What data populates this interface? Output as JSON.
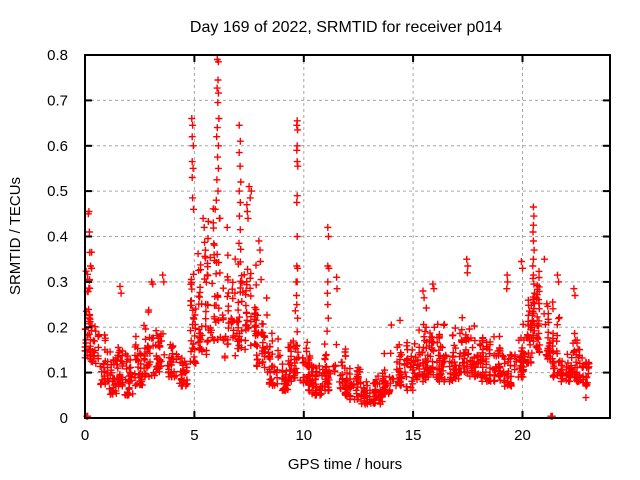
{
  "chart_data": {
    "type": "scatter",
    "title": "Day 169 of 2022, SRMTID for receiver p014",
    "xlabel": "GPS time / hours",
    "ylabel": "SRMTID / TECUs",
    "xlim": [
      0,
      24
    ],
    "ylim": [
      0,
      0.8
    ],
    "xticks": [
      0,
      5,
      10,
      15,
      20
    ],
    "yticks": [
      0,
      0.1,
      0.2,
      0.3,
      0.4,
      0.5,
      0.6,
      0.7,
      0.8
    ],
    "grid": {
      "shown": true,
      "color": "#a6a6a6",
      "dash": "3,3"
    },
    "frame_color": "#000000",
    "marker": {
      "shape": "plus",
      "color": "#ff0000",
      "size": 7
    },
    "legend": {
      "shown": false
    },
    "data_representation": "Dense noisy scatter (~2000 pts). band_segments = [t_start,t_end,y_min,y_max,count] summarize the noise band read from the plot; peak_points are the individually readable outlier/spike points in TECUs.",
    "seed": 169,
    "band_segments": [
      [
        0.0,
        0.25,
        0.13,
        0.31,
        26
      ],
      [
        0.05,
        0.35,
        0.27,
        0.42,
        9
      ],
      [
        0.25,
        0.65,
        0.12,
        0.27,
        30
      ],
      [
        0.65,
        1.05,
        0.07,
        0.19,
        28
      ],
      [
        1.05,
        1.45,
        0.05,
        0.16,
        28
      ],
      [
        1.45,
        1.85,
        0.07,
        0.22,
        32
      ],
      [
        1.85,
        2.25,
        0.05,
        0.15,
        28
      ],
      [
        2.25,
        2.7,
        0.07,
        0.2,
        30
      ],
      [
        2.7,
        3.25,
        0.09,
        0.26,
        34
      ],
      [
        3.25,
        3.75,
        0.1,
        0.28,
        34
      ],
      [
        3.75,
        4.25,
        0.09,
        0.22,
        32
      ],
      [
        4.25,
        4.7,
        0.07,
        0.18,
        28
      ],
      [
        4.7,
        5.1,
        0.12,
        0.38,
        32
      ],
      [
        5.1,
        5.6,
        0.14,
        0.4,
        38
      ],
      [
        5.6,
        6.3,
        0.17,
        0.5,
        48
      ],
      [
        6.3,
        6.85,
        0.13,
        0.38,
        36
      ],
      [
        6.85,
        7.35,
        0.15,
        0.4,
        36
      ],
      [
        7.35,
        7.85,
        0.16,
        0.42,
        38
      ],
      [
        7.85,
        8.35,
        0.1,
        0.3,
        34
      ],
      [
        8.35,
        8.85,
        0.07,
        0.2,
        32
      ],
      [
        8.85,
        9.35,
        0.06,
        0.16,
        32
      ],
      [
        9.35,
        9.8,
        0.08,
        0.28,
        28
      ],
      [
        9.8,
        10.3,
        0.06,
        0.18,
        34
      ],
      [
        10.3,
        10.85,
        0.05,
        0.15,
        34
      ],
      [
        10.85,
        11.5,
        0.06,
        0.22,
        40
      ],
      [
        11.5,
        12.1,
        0.05,
        0.16,
        38
      ],
      [
        12.1,
        12.6,
        0.04,
        0.13,
        34
      ],
      [
        12.6,
        13.1,
        0.03,
        0.11,
        34
      ],
      [
        13.1,
        13.6,
        0.03,
        0.12,
        34
      ],
      [
        13.6,
        14.1,
        0.05,
        0.16,
        34
      ],
      [
        14.1,
        14.6,
        0.07,
        0.2,
        34
      ],
      [
        14.6,
        15.1,
        0.06,
        0.19,
        34
      ],
      [
        15.1,
        15.6,
        0.08,
        0.24,
        36
      ],
      [
        15.6,
        16.1,
        0.09,
        0.26,
        38
      ],
      [
        16.1,
        16.6,
        0.08,
        0.23,
        34
      ],
      [
        16.6,
        17.1,
        0.08,
        0.22,
        34
      ],
      [
        17.1,
        17.6,
        0.1,
        0.26,
        36
      ],
      [
        17.6,
        18.1,
        0.09,
        0.22,
        34
      ],
      [
        18.1,
        18.6,
        0.08,
        0.22,
        34
      ],
      [
        18.6,
        19.1,
        0.08,
        0.2,
        34
      ],
      [
        19.1,
        19.6,
        0.07,
        0.18,
        34
      ],
      [
        19.6,
        20.1,
        0.09,
        0.24,
        36
      ],
      [
        20.1,
        20.45,
        0.12,
        0.32,
        30
      ],
      [
        20.45,
        20.75,
        0.15,
        0.38,
        28
      ],
      [
        20.75,
        21.25,
        0.13,
        0.33,
        38
      ],
      [
        21.25,
        21.75,
        0.09,
        0.26,
        32
      ],
      [
        21.75,
        22.25,
        0.08,
        0.2,
        32
      ],
      [
        22.25,
        22.75,
        0.08,
        0.24,
        36
      ],
      [
        22.75,
        23.05,
        0.07,
        0.17,
        26
      ]
    ],
    "peak_points": [
      [
        0.08,
        0.004
      ],
      [
        0.12,
        0.004
      ],
      [
        0.15,
        0.45
      ],
      [
        0.18,
        0.455
      ],
      [
        0.2,
        0.41
      ],
      [
        0.22,
        0.365
      ],
      [
        0.25,
        0.335
      ],
      [
        0.3,
        0.33
      ],
      [
        1.6,
        0.29
      ],
      [
        1.65,
        0.275
      ],
      [
        3.05,
        0.3
      ],
      [
        3.1,
        0.295
      ],
      [
        3.55,
        0.315
      ],
      [
        3.6,
        0.3
      ],
      [
        4.88,
        0.66
      ],
      [
        4.92,
        0.645
      ],
      [
        4.9,
        0.62
      ],
      [
        4.95,
        0.6
      ],
      [
        4.9,
        0.565
      ],
      [
        4.94,
        0.55
      ],
      [
        4.9,
        0.53
      ],
      [
        4.92,
        0.485
      ],
      [
        4.96,
        0.46
      ],
      [
        5.4,
        0.44
      ],
      [
        5.45,
        0.42
      ],
      [
        5.95,
        0.46
      ],
      [
        6.0,
        0.48
      ],
      [
        6.03,
        0.525
      ],
      [
        6.05,
        0.79
      ],
      [
        6.05,
        0.64
      ],
      [
        6.02,
        0.62
      ],
      [
        6.04,
        0.727
      ],
      [
        6.06,
        0.575
      ],
      [
        6.07,
        0.695
      ],
      [
        6.08,
        0.745
      ],
      [
        6.08,
        0.5
      ],
      [
        6.1,
        0.785
      ],
      [
        6.1,
        0.716
      ],
      [
        6.1,
        0.6
      ],
      [
        6.1,
        0.55
      ],
      [
        6.12,
        0.66
      ],
      [
        6.15,
        0.44
      ],
      [
        6.5,
        0.42
      ],
      [
        7.04,
        0.385
      ],
      [
        7.05,
        0.645
      ],
      [
        7.05,
        0.585
      ],
      [
        7.05,
        0.5
      ],
      [
        7.06,
        0.445
      ],
      [
        7.09,
        0.555
      ],
      [
        7.1,
        0.61
      ],
      [
        7.1,
        0.475
      ],
      [
        7.1,
        0.415
      ],
      [
        7.12,
        0.52
      ],
      [
        7.4,
        0.47
      ],
      [
        7.42,
        0.455
      ],
      [
        7.45,
        0.44
      ],
      [
        7.5,
        0.51
      ],
      [
        7.55,
        0.485
      ],
      [
        7.6,
        0.5
      ],
      [
        7.95,
        0.39
      ],
      [
        8.0,
        0.37
      ],
      [
        8.02,
        0.345
      ],
      [
        8.05,
        0.305
      ],
      [
        9.65,
        0.3
      ],
      [
        9.67,
        0.27
      ],
      [
        9.68,
        0.645
      ],
      [
        9.68,
        0.59
      ],
      [
        9.68,
        0.475
      ],
      [
        9.68,
        0.335
      ],
      [
        9.68,
        0.25
      ],
      [
        9.68,
        0.13
      ],
      [
        9.7,
        0.655
      ],
      [
        9.7,
        0.6
      ],
      [
        9.7,
        0.565
      ],
      [
        9.7,
        0.49
      ],
      [
        9.7,
        0.4
      ],
      [
        9.7,
        0.3
      ],
      [
        9.7,
        0.19
      ],
      [
        9.7,
        0.16
      ],
      [
        9.7,
        0.1
      ],
      [
        9.72,
        0.635
      ],
      [
        9.72,
        0.33
      ],
      [
        9.72,
        0.22
      ],
      [
        9.73,
        0.555
      ],
      [
        11.08,
        0.275
      ],
      [
        11.1,
        0.42
      ],
      [
        11.1,
        0.335
      ],
      [
        11.1,
        0.3
      ],
      [
        11.1,
        0.25
      ],
      [
        11.12,
        0.22
      ],
      [
        11.13,
        0.4
      ],
      [
        11.15,
        0.33
      ],
      [
        11.5,
        0.31
      ],
      [
        11.52,
        0.285
      ],
      [
        14.0,
        0.205
      ],
      [
        14.4,
        0.215
      ],
      [
        15.45,
        0.28
      ],
      [
        15.5,
        0.265
      ],
      [
        15.9,
        0.295
      ],
      [
        15.95,
        0.285
      ],
      [
        17.45,
        0.35
      ],
      [
        17.5,
        0.335
      ],
      [
        17.48,
        0.32
      ],
      [
        19.3,
        0.315
      ],
      [
        19.32,
        0.3
      ],
      [
        19.28,
        0.285
      ],
      [
        19.95,
        0.345
      ],
      [
        20.0,
        0.33
      ],
      [
        20.45,
        0.215
      ],
      [
        20.47,
        0.335
      ],
      [
        20.48,
        0.41
      ],
      [
        20.48,
        0.235
      ],
      [
        20.5,
        0.465
      ],
      [
        20.5,
        0.425
      ],
      [
        20.5,
        0.39
      ],
      [
        20.5,
        0.35
      ],
      [
        20.5,
        0.315
      ],
      [
        20.5,
        0.255
      ],
      [
        20.52,
        0.445
      ],
      [
        20.52,
        0.295
      ],
      [
        20.53,
        0.37
      ],
      [
        20.55,
        0.275
      ],
      [
        21.0,
        0.35
      ],
      [
        21.3,
        0.004
      ],
      [
        21.36,
        0.004
      ],
      [
        21.6,
        0.315
      ],
      [
        21.65,
        0.3
      ],
      [
        22.35,
        0.285
      ],
      [
        22.4,
        0.27
      ],
      [
        22.9,
        0.045
      ]
    ]
  }
}
